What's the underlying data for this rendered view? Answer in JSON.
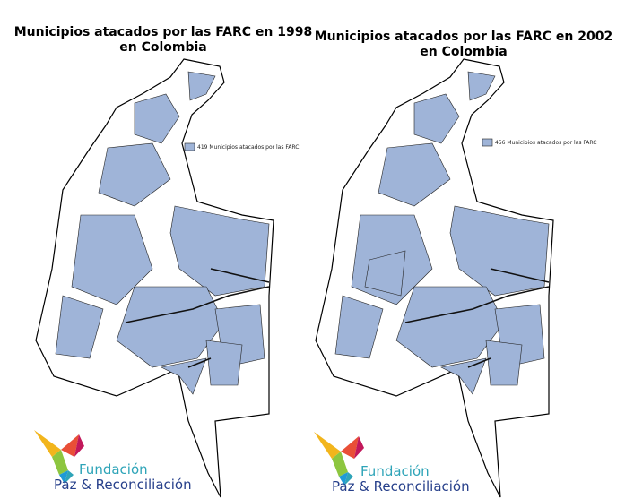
{
  "maps": [
    {
      "title_lines": [
        "Municipios atacados por las FARC en 1998",
        "en Colombia"
      ],
      "legend": "419 Municipios atacados por las FARC",
      "logo": {
        "line1": "Fundación",
        "line2": "Paz & Reconciliación"
      }
    },
    {
      "title_lines": [
        "Municipios atacados por las FARC en 2002",
        "en Colombia"
      ],
      "legend": "456 Municipios atacados por las FARC",
      "logo": {
        "line1": "Fundación",
        "line2": "Paz & Reconciliación"
      }
    }
  ]
}
